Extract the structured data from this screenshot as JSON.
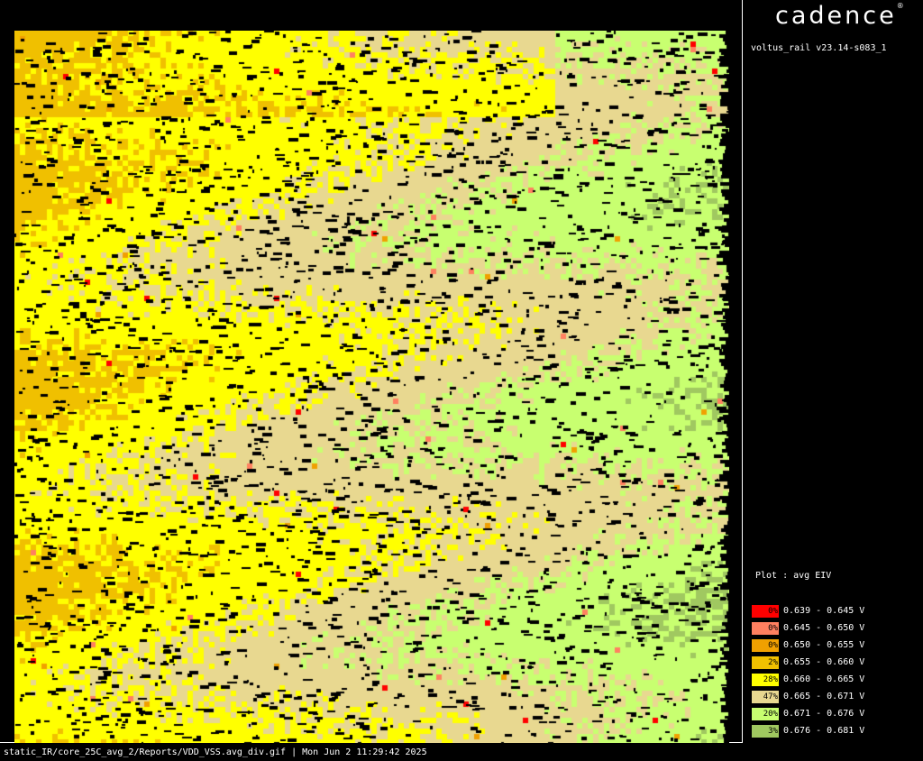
{
  "header": {
    "logo_text": "cadence",
    "logo_mark": "®",
    "version": "voltus_rail v23.14-s083_1"
  },
  "plot_label": "Plot : avg EIV",
  "footer": "static_IR/core_25C_avg_2/Reports/VDD_VSS.avg_div.gif | Mon Jun  2 11:29:42 2025",
  "legend": [
    {
      "pct": "0%",
      "range": "0.639 - 0.645 V",
      "color": "#ff0000"
    },
    {
      "pct": "0%",
      "range": "0.645 - 0.650 V",
      "color": "#ff8060"
    },
    {
      "pct": "0%",
      "range": "0.650 - 0.655 V",
      "color": "#f0a000"
    },
    {
      "pct": "2%",
      "range": "0.655 - 0.660 V",
      "color": "#f0c000"
    },
    {
      "pct": "28%",
      "range": "0.660 - 0.665 V",
      "color": "#ffff00"
    },
    {
      "pct": "47%",
      "range": "0.665 - 0.671 V",
      "color": "#e8d890"
    },
    {
      "pct": "20%",
      "range": "0.671 - 0.676 V",
      "color": "#c8ff70"
    },
    {
      "pct": "3%",
      "range": "0.676 - 0.681 V",
      "color": "#a0c860"
    }
  ],
  "chart_data": {
    "type": "heatmap",
    "title": "Plot : avg EIV",
    "unit": "V",
    "bins": [
      {
        "min": 0.639,
        "max": 0.645,
        "percent": 0
      },
      {
        "min": 0.645,
        "max": 0.65,
        "percent": 0
      },
      {
        "min": 0.65,
        "max": 0.655,
        "percent": 0
      },
      {
        "min": 0.655,
        "max": 0.66,
        "percent": 2
      },
      {
        "min": 0.66,
        "max": 0.665,
        "percent": 28
      },
      {
        "min": 0.665,
        "max": 0.671,
        "percent": 47
      },
      {
        "min": 0.671,
        "max": 0.676,
        "percent": 20
      },
      {
        "min": 0.676,
        "max": 0.681,
        "percent": 3
      }
    ]
  }
}
